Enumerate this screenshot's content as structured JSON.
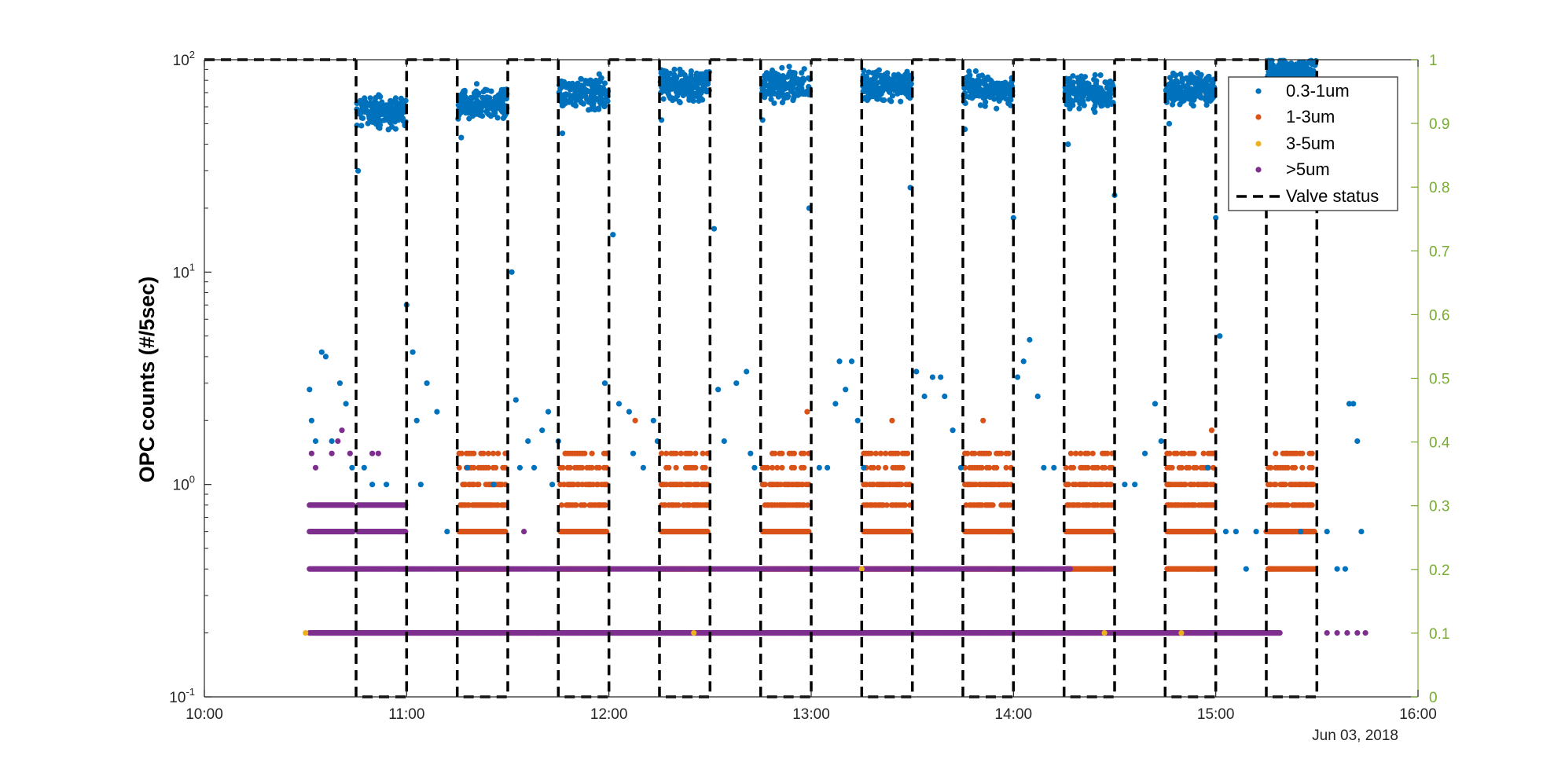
{
  "chart_data": {
    "type": "scatter",
    "title": "",
    "xlabel": "",
    "ylabel": "OPC counts (#/5sec)",
    "date_label": "Jun 03, 2018",
    "x_ticks": [
      "10:00",
      "11:00",
      "12:00",
      "13:00",
      "14:00",
      "15:00",
      "16:00"
    ],
    "xlim_hours": [
      10,
      16
    ],
    "y_left": {
      "scale": "log",
      "lim": [
        0.1,
        100
      ],
      "ticks": [
        0.1,
        1,
        10,
        100
      ],
      "tick_bases": [
        "10",
        "10",
        "10",
        "10"
      ],
      "tick_exponents": [
        "-1",
        "0",
        "1",
        "2"
      ]
    },
    "y_right": {
      "scale": "linear",
      "lim": [
        0,
        1
      ],
      "ticks": [
        "0",
        "0.1",
        "0.2",
        "0.3",
        "0.4",
        "0.5",
        "0.6",
        "0.7",
        "0.8",
        "0.9",
        "1"
      ]
    },
    "grid": false,
    "legend_position": "top-right",
    "valve_segments": [
      [
        10.75,
        11.0
      ],
      [
        11.25,
        11.5
      ],
      [
        11.75,
        12.0
      ],
      [
        12.25,
        12.5
      ],
      [
        12.75,
        13.0
      ],
      [
        13.25,
        13.5
      ],
      [
        13.75,
        14.0
      ],
      [
        14.25,
        14.5
      ],
      [
        14.75,
        15.0
      ],
      [
        15.25,
        15.5
      ]
    ],
    "high_clusters": [
      {
        "start": 10.75,
        "end": 11.0,
        "median": 57
      },
      {
        "start": 11.25,
        "end": 11.5,
        "median": 62
      },
      {
        "start": 11.75,
        "end": 12.0,
        "median": 70
      },
      {
        "start": 12.25,
        "end": 12.5,
        "median": 76
      },
      {
        "start": 12.75,
        "end": 13.0,
        "median": 76
      },
      {
        "start": 13.25,
        "end": 13.5,
        "median": 75
      },
      {
        "start": 13.75,
        "end": 14.0,
        "median": 73
      },
      {
        "start": 14.25,
        "end": 14.5,
        "median": 70
      },
      {
        "start": 14.75,
        "end": 15.0,
        "median": 73
      },
      {
        "start": 15.25,
        "end": 15.5,
        "median": 85
      }
    ],
    "series": [
      {
        "name": "0.3-1um",
        "color": "#0072BD",
        "points": [
          [
            10.52,
            2.8
          ],
          [
            10.53,
            2.0
          ],
          [
            10.55,
            1.6
          ],
          [
            10.58,
            4.2
          ],
          [
            10.6,
            4.0
          ],
          [
            10.63,
            1.6
          ],
          [
            10.67,
            3.0
          ],
          [
            10.7,
            2.4
          ],
          [
            10.73,
            1.2
          ],
          [
            10.76,
            30
          ],
          [
            10.79,
            1.2
          ],
          [
            10.83,
            1.0
          ],
          [
            10.9,
            1.0
          ],
          [
            11.0,
            7.0
          ],
          [
            11.03,
            4.2
          ],
          [
            11.05,
            2.0
          ],
          [
            11.07,
            1.0
          ],
          [
            11.1,
            3.0
          ],
          [
            11.15,
            2.2
          ],
          [
            11.2,
            0.6
          ],
          [
            11.27,
            43
          ],
          [
            11.3,
            1.2
          ],
          [
            11.43,
            1.0
          ],
          [
            11.52,
            10.0
          ],
          [
            11.54,
            2.5
          ],
          [
            11.56,
            1.2
          ],
          [
            11.6,
            1.6
          ],
          [
            11.63,
            1.2
          ],
          [
            11.67,
            1.8
          ],
          [
            11.7,
            2.2
          ],
          [
            11.72,
            1.0
          ],
          [
            11.75,
            1.6
          ],
          [
            11.77,
            45
          ],
          [
            11.98,
            3.0
          ],
          [
            12.02,
            15
          ],
          [
            12.05,
            2.4
          ],
          [
            12.1,
            2.2
          ],
          [
            12.12,
            1.4
          ],
          [
            12.17,
            1.2
          ],
          [
            12.22,
            2.0
          ],
          [
            12.24,
            1.6
          ],
          [
            12.26,
            52
          ],
          [
            12.52,
            16
          ],
          [
            12.54,
            2.8
          ],
          [
            12.57,
            1.6
          ],
          [
            12.63,
            3.0
          ],
          [
            12.68,
            3.4
          ],
          [
            12.7,
            1.4
          ],
          [
            12.72,
            1.2
          ],
          [
            12.76,
            52
          ],
          [
            12.99,
            20
          ],
          [
            13.04,
            1.2
          ],
          [
            13.08,
            1.2
          ],
          [
            13.12,
            2.4
          ],
          [
            13.14,
            3.8
          ],
          [
            13.17,
            2.8
          ],
          [
            13.2,
            3.8
          ],
          [
            13.23,
            2.0
          ],
          [
            13.26,
            1.2
          ],
          [
            13.49,
            25
          ],
          [
            13.52,
            3.4
          ],
          [
            13.56,
            2.6
          ],
          [
            13.6,
            3.2
          ],
          [
            13.64,
            3.2
          ],
          [
            13.66,
            2.6
          ],
          [
            13.7,
            1.8
          ],
          [
            13.74,
            1.2
          ],
          [
            13.76,
            47
          ],
          [
            14.0,
            18
          ],
          [
            14.02,
            3.2
          ],
          [
            14.05,
            3.8
          ],
          [
            14.08,
            4.8
          ],
          [
            14.12,
            2.6
          ],
          [
            14.15,
            1.2
          ],
          [
            14.2,
            1.2
          ],
          [
            14.27,
            40
          ],
          [
            14.5,
            23
          ],
          [
            14.55,
            1.0
          ],
          [
            14.6,
            1.0
          ],
          [
            14.65,
            1.4
          ],
          [
            14.7,
            2.4
          ],
          [
            14.73,
            1.6
          ],
          [
            14.77,
            50
          ],
          [
            14.96,
            1.2
          ],
          [
            15.0,
            18
          ],
          [
            15.02,
            5.0
          ],
          [
            15.05,
            0.6
          ],
          [
            15.1,
            0.6
          ],
          [
            15.15,
            0.4
          ],
          [
            15.2,
            0.6
          ],
          [
            15.42,
            0.6
          ],
          [
            15.55,
            0.6
          ],
          [
            15.6,
            0.4
          ],
          [
            15.64,
            0.4
          ],
          [
            15.66,
            2.4
          ],
          [
            15.68,
            2.4
          ],
          [
            15.7,
            1.6
          ],
          [
            15.72,
            0.6
          ]
        ]
      },
      {
        "name": "1-3um",
        "color": "#D95319",
        "points": [
          [
            12.13,
            2.0
          ],
          [
            12.98,
            2.2
          ],
          [
            13.4,
            2.0
          ],
          [
            13.85,
            2.0
          ],
          [
            14.98,
            1.8
          ],
          [
            15.25,
            0.6
          ],
          [
            15.27,
            0.4
          ],
          [
            15.35,
            1.4
          ],
          [
            15.38,
            0.6
          ],
          [
            15.4,
            1.4
          ]
        ]
      },
      {
        "name": "3-5um",
        "color": "#EDB120",
        "points": [
          [
            10.5,
            0.2
          ],
          [
            12.42,
            0.2
          ],
          [
            13.25,
            0.4
          ],
          [
            14.45,
            0.2
          ],
          [
            14.83,
            0.2
          ]
        ]
      },
      {
        "name": ">5um",
        "color": "#7E2F8E",
        "points": [
          [
            10.53,
            1.4
          ],
          [
            10.55,
            1.2
          ],
          [
            10.63,
            1.4
          ],
          [
            10.66,
            1.6
          ],
          [
            10.68,
            1.8
          ],
          [
            10.72,
            1.4
          ],
          [
            10.83,
            1.4
          ],
          [
            10.86,
            1.4
          ],
          [
            11.58,
            0.6
          ],
          [
            11.65,
            0.2
          ],
          [
            11.72,
            0.2
          ],
          [
            15.55,
            0.2
          ],
          [
            15.6,
            0.2
          ],
          [
            15.65,
            0.2
          ],
          [
            15.7,
            0.2
          ],
          [
            15.74,
            0.2
          ]
        ]
      }
    ],
    "legend": [
      {
        "label": "0.3-1um",
        "color": "#0072BD",
        "style": "dot"
      },
      {
        "label": "1-3um",
        "color": "#D95319",
        "style": "dot"
      },
      {
        "label": "3-5um",
        "color": "#EDB120",
        "style": "dot"
      },
      {
        "label": ">5um",
        "color": ">5um-purple",
        "style": "dot"
      },
      {
        "label": "Valve status",
        "color": "#000000",
        "style": "dashed-line"
      }
    ]
  },
  "colors": {
    "axis": "#262626",
    "right_axis": "#77AC30",
    "valve": "#000000",
    "purple": "#7E2F8E"
  }
}
